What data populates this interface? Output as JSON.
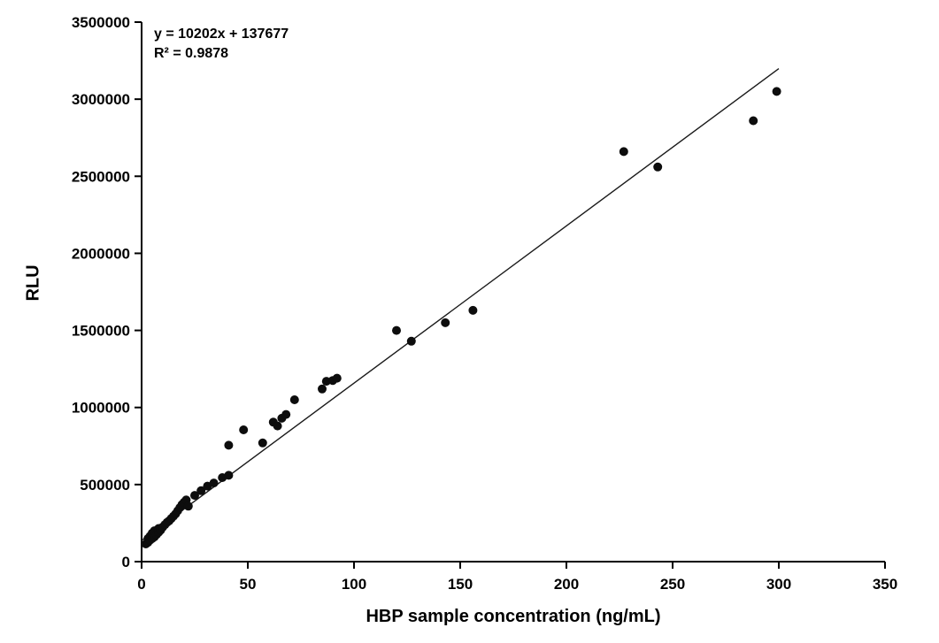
{
  "chart_data": {
    "type": "scatter",
    "title": "",
    "xlabel": "HBP sample concentration (ng/mL)",
    "ylabel": "RLU",
    "xlim": [
      0,
      350
    ],
    "ylim": [
      0,
      3500000
    ],
    "x_ticks": [
      0,
      50,
      100,
      150,
      200,
      250,
      300,
      350
    ],
    "y_ticks": [
      0,
      500000,
      1000000,
      1500000,
      2000000,
      2500000,
      3000000,
      3500000
    ],
    "grid": false,
    "legend": "none",
    "annotation": {
      "equation": "y = 10202x + 137677",
      "r_squared": "R² = 0.9878"
    },
    "trendline": {
      "slope": 10202,
      "intercept": 137677,
      "x_start": 0,
      "x_end": 300
    },
    "point_color": "#0d0d0d",
    "line_color": "#1a1a1a",
    "points": [
      [
        2,
        115000
      ],
      [
        3,
        125000
      ],
      [
        3,
        150000
      ],
      [
        4,
        140000
      ],
      [
        4,
        165000
      ],
      [
        5,
        150000
      ],
      [
        5,
        185000
      ],
      [
        6,
        160000
      ],
      [
        6,
        200000
      ],
      [
        7,
        175000
      ],
      [
        8,
        190000
      ],
      [
        8,
        215000
      ],
      [
        9,
        205000
      ],
      [
        10,
        225000
      ],
      [
        11,
        240000
      ],
      [
        12,
        255000
      ],
      [
        13,
        265000
      ],
      [
        14,
        280000
      ],
      [
        15,
        295000
      ],
      [
        16,
        310000
      ],
      [
        17,
        330000
      ],
      [
        18,
        350000
      ],
      [
        19,
        370000
      ],
      [
        20,
        385000
      ],
      [
        21,
        400000
      ],
      [
        22,
        360000
      ],
      [
        25,
        430000
      ],
      [
        28,
        460000
      ],
      [
        31,
        490000
      ],
      [
        34,
        510000
      ],
      [
        38,
        545000
      ],
      [
        41,
        560000
      ],
      [
        41,
        755000
      ],
      [
        48,
        855000
      ],
      [
        57,
        770000
      ],
      [
        62,
        905000
      ],
      [
        64,
        880000
      ],
      [
        66,
        930000
      ],
      [
        68,
        955000
      ],
      [
        72,
        1050000
      ],
      [
        85,
        1120000
      ],
      [
        87,
        1170000
      ],
      [
        90,
        1175000
      ],
      [
        92,
        1190000
      ],
      [
        120,
        1500000
      ],
      [
        127,
        1430000
      ],
      [
        143,
        1550000
      ],
      [
        156,
        1630000
      ],
      [
        227,
        2660000
      ],
      [
        243,
        2560000
      ],
      [
        288,
        2860000
      ],
      [
        299,
        3050000
      ]
    ]
  }
}
